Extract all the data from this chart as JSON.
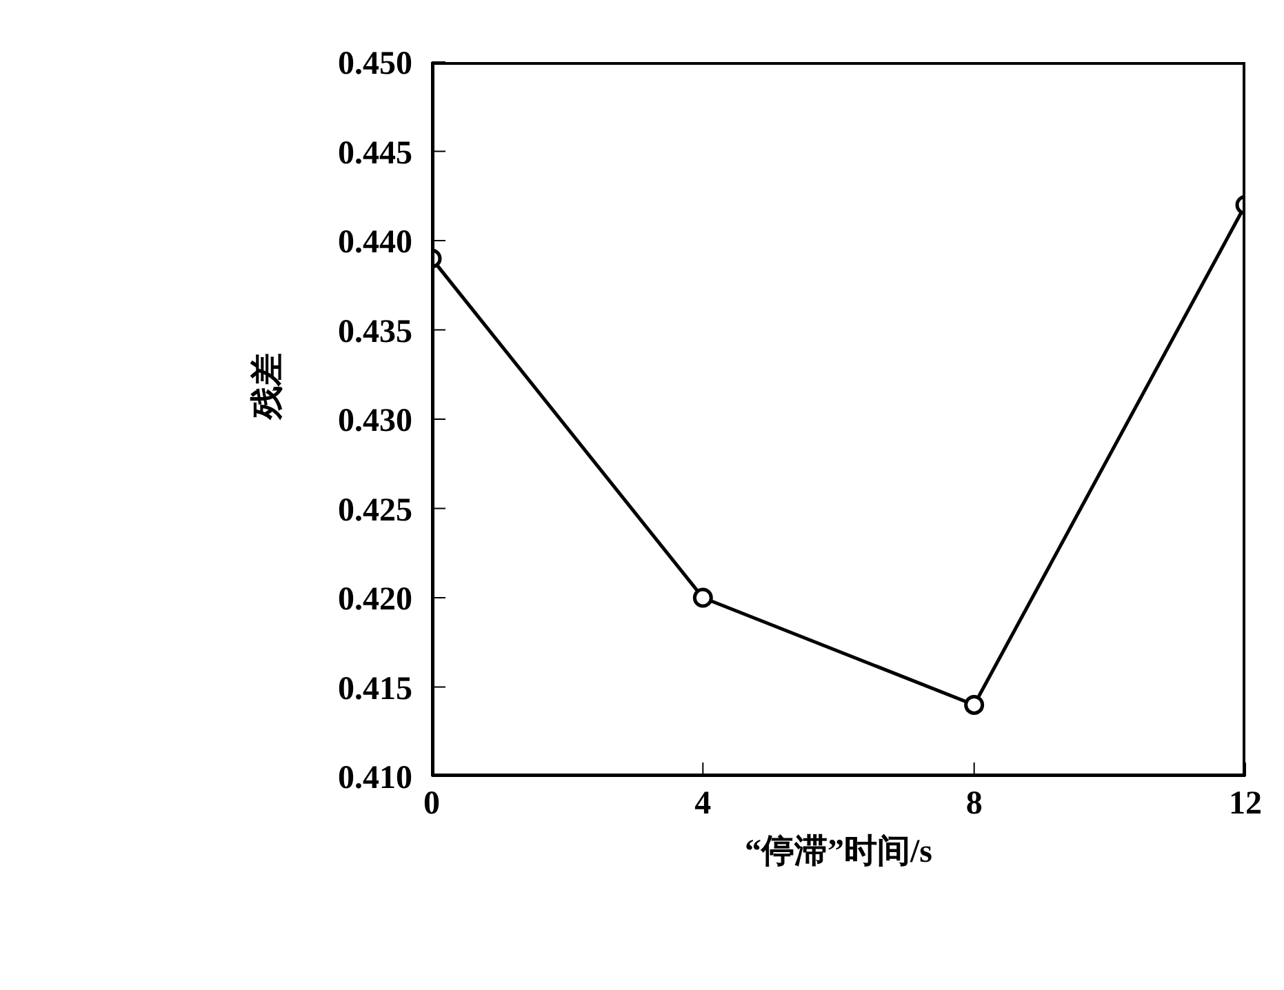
{
  "chart_data": {
    "type": "line",
    "xlabel": "“停滞”时间/s",
    "ylabel": "残差",
    "x": [
      0,
      4,
      8,
      12
    ],
    "series": [
      {
        "color": "#000000",
        "values": [
          0.439,
          0.42,
          0.414,
          0.442
        ]
      }
    ],
    "xlim": [
      0,
      12
    ],
    "xticks": [
      0,
      4,
      8,
      12
    ],
    "ylim": [
      0.41,
      0.45
    ],
    "yticks": [
      {
        "value": 0.41,
        "label": "0.410"
      },
      {
        "value": 0.415,
        "label": "0.415"
      },
      {
        "value": 0.42,
        "label": "0.420"
      },
      {
        "value": 0.425,
        "label": "0.425"
      },
      {
        "value": 0.43,
        "label": "0.430"
      },
      {
        "value": 0.435,
        "label": "0.435"
      },
      {
        "value": 0.44,
        "label": "0.440"
      },
      {
        "value": 0.445,
        "label": "0.445"
      },
      {
        "value": 0.45,
        "label": "0.450"
      }
    ],
    "marker": "circle",
    "line_style": "solid",
    "grid": false,
    "legend": false
  }
}
